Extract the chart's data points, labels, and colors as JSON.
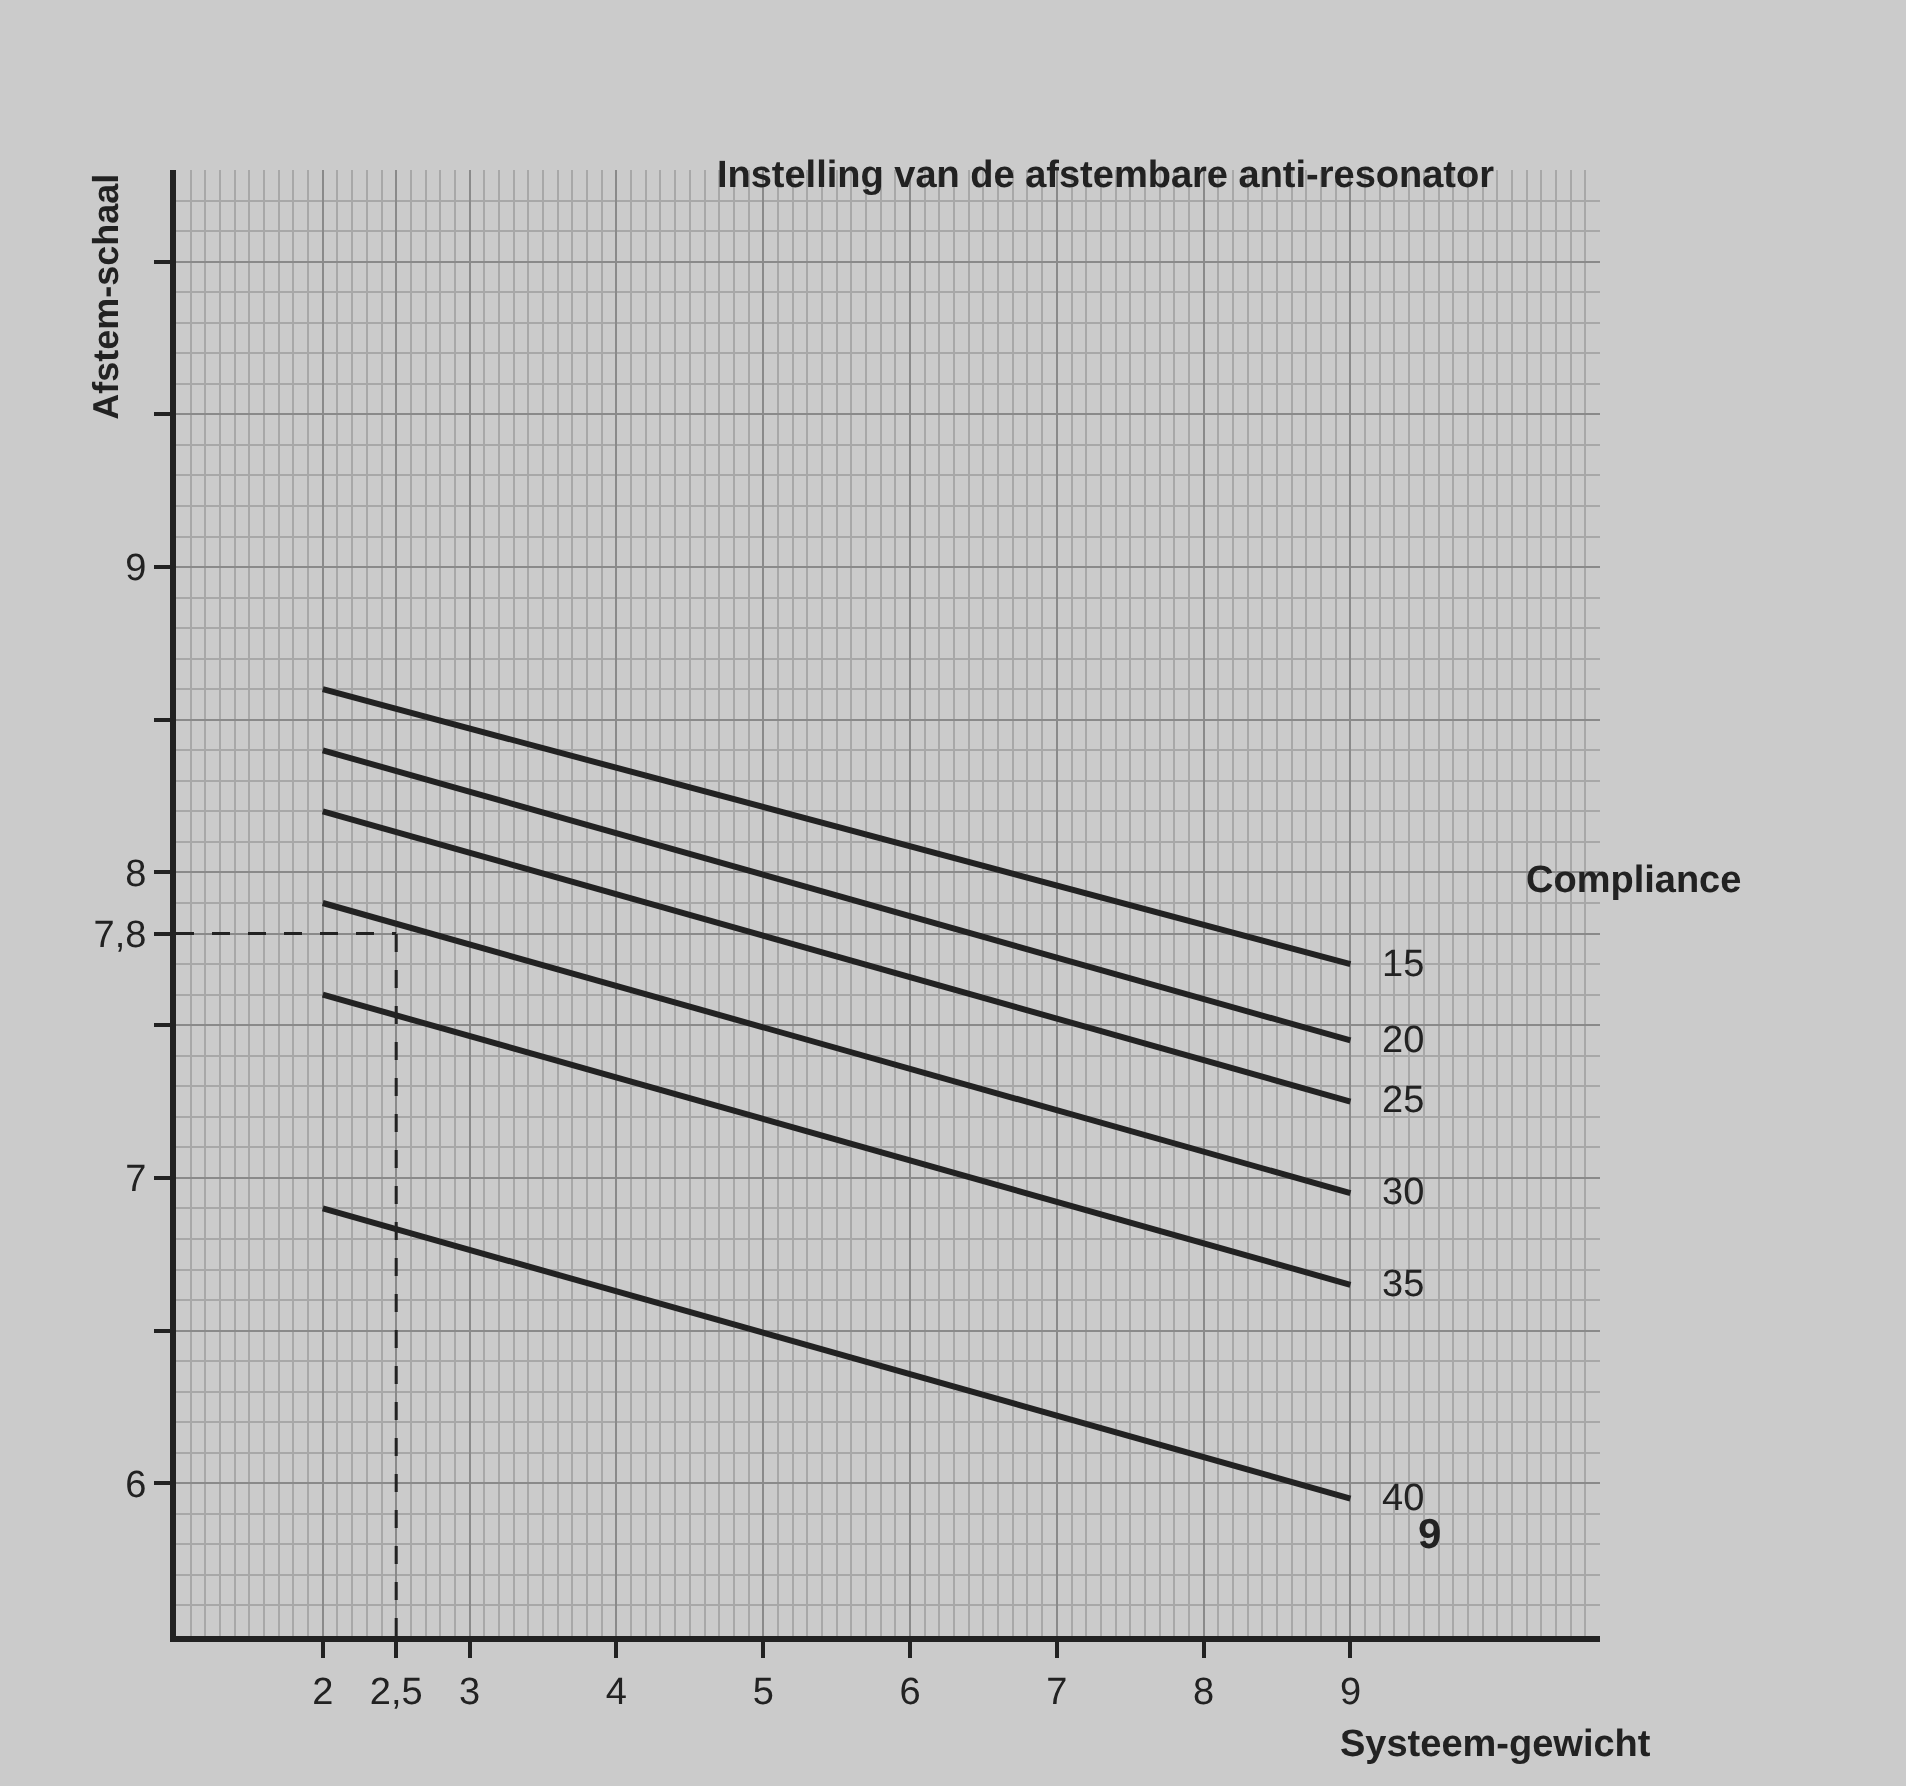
{
  "chart_data": {
    "type": "line",
    "title": "Instelling van de afstembare anti-resonator",
    "xlabel": "Systeem-gewicht",
    "ylabel": "Afstem-schaal",
    "x": [
      2,
      9
    ],
    "series": [
      {
        "name": "15",
        "color": "#222222",
        "values": [
          8.6,
          7.7
        ]
      },
      {
        "name": "20",
        "color": "#222222",
        "values": [
          8.4,
          7.45
        ]
      },
      {
        "name": "25",
        "color": "#222222",
        "values": [
          8.2,
          7.25
        ]
      },
      {
        "name": "30",
        "color": "#222222",
        "values": [
          7.9,
          6.95
        ]
      },
      {
        "name": "35",
        "color": "#222222",
        "values": [
          7.6,
          6.65
        ]
      },
      {
        "name": "40",
        "color": "#222222",
        "values": [
          6.9,
          5.95
        ]
      }
    ],
    "xlim": [
      1,
      10.7
    ],
    "ylim": [
      5.5,
      10.3
    ],
    "xticks": [
      2,
      {
        "value": 2.5,
        "label": "2,5"
      },
      3,
      4,
      5,
      6,
      7,
      8,
      9
    ],
    "yticks": [
      6,
      {
        "value": 6.5,
        "label": null
      },
      7,
      {
        "value": 7.5,
        "label": null
      },
      {
        "value": 7.8,
        "label": "7,8"
      },
      8,
      {
        "value": 8.5,
        "label": null
      },
      9,
      {
        "value": 9.5,
        "label": null
      },
      {
        "value": 10,
        "label": null
      }
    ],
    "ref_lines": [
      {
        "axis": "x",
        "value": 2.5,
        "line_style": "dashed",
        "color": "#222222"
      },
      {
        "axis": "y",
        "value": 7.8,
        "line_style": "dashed",
        "color": "#222222"
      }
    ],
    "annotations": [
      "Compliance",
      "9"
    ],
    "grid": true,
    "legend": false,
    "marker": "none",
    "line_style": "solid"
  }
}
